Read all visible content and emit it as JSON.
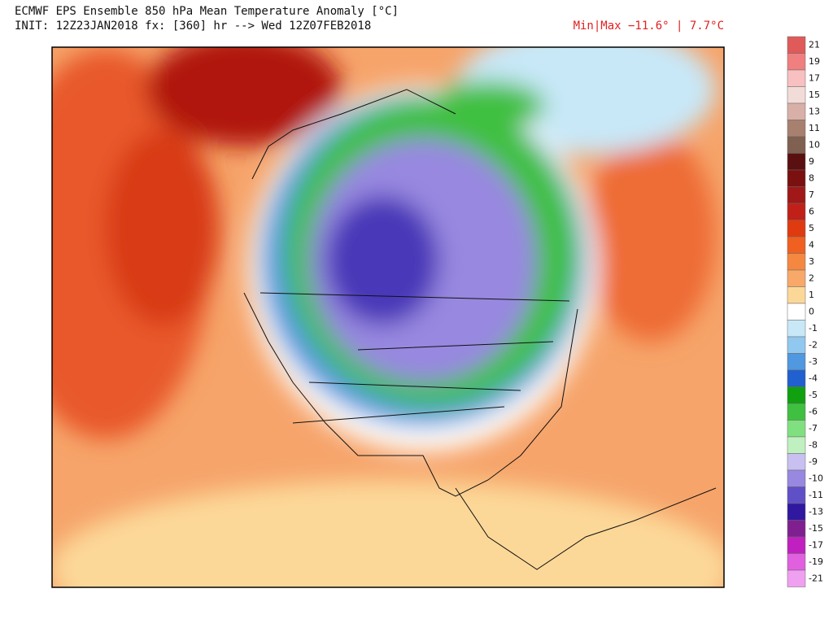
{
  "header": {
    "title": "ECMWF EPS Ensemble 850 hPa Mean Temperature Anomaly [°C]",
    "init": "INIT: 12Z23JAN2018 fx: [360] hr --> Wed 12Z07FEB2018",
    "minmax": "Min|Max −11.6° | 7.7°C"
  },
  "colorbar": {
    "ticks": [
      21,
      19,
      17,
      15,
      13,
      11,
      10,
      9,
      8,
      7,
      6,
      5,
      4,
      3,
      2,
      1,
      0,
      -1,
      -2,
      -3,
      -4,
      -5,
      -6,
      -7,
      -8,
      -9,
      -10,
      -11,
      -13,
      -15,
      -17,
      -19,
      -21
    ],
    "colors": [
      "#e05a5a",
      "#f07f80",
      "#f8c0c0",
      "#f2dcd8",
      "#d8b0a8",
      "#a88070",
      "#806050",
      "#5a1010",
      "#7a1010",
      "#a01818",
      "#c02018",
      "#e03a10",
      "#f06020",
      "#f58840",
      "#f8a868",
      "#fcd898",
      "#ffffff",
      "#c8e8f8",
      "#90c8f0",
      "#5098e0",
      "#2060d0",
      "#10a010",
      "#40c040",
      "#80e080",
      "#c0f0c0",
      "#c8c0f0",
      "#9888e0",
      "#6050c8",
      "#3018a0",
      "#802090",
      "#c020c0",
      "#e060e0",
      "#f0a0f0"
    ]
  }
}
